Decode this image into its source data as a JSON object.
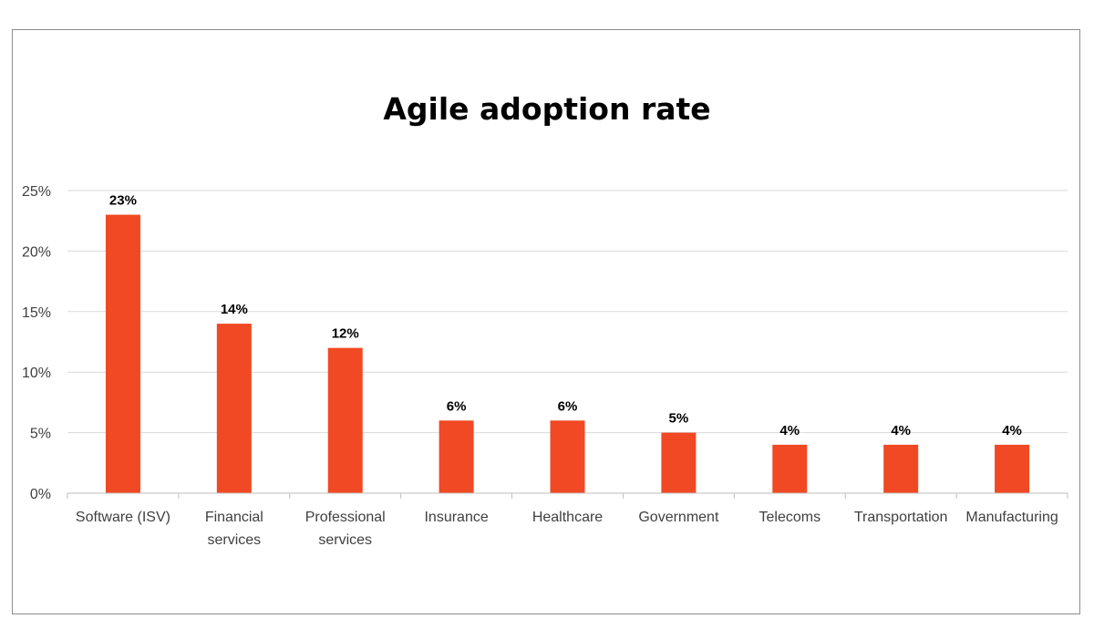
{
  "chart_data": {
    "type": "bar",
    "title": "Agile adoption rate",
    "categories": [
      [
        "Software (ISV)"
      ],
      [
        "Financial",
        "services"
      ],
      [
        "Professional",
        "services"
      ],
      [
        "Insurance"
      ],
      [
        "Healthcare"
      ],
      [
        "Government"
      ],
      [
        "Telecoms"
      ],
      [
        "Transportation"
      ],
      [
        "Manufacturing"
      ]
    ],
    "values": [
      23,
      14,
      12,
      6,
      6,
      5,
      4,
      4,
      4
    ],
    "value_labels": [
      "23%",
      "14%",
      "12%",
      "6%",
      "6%",
      "5%",
      "4%",
      "4%",
      "4%"
    ],
    "ylim": [
      0,
      25
    ],
    "yticks": [
      0,
      5,
      10,
      15,
      20,
      25
    ],
    "ytick_labels": [
      "0%",
      "5%",
      "10%",
      "15%",
      "20%",
      "25%"
    ],
    "xlabel": "",
    "ylabel": "",
    "grid": true,
    "legend": "none",
    "colors": {
      "bar": "#f04923",
      "grid": "#d9d9d9",
      "axis": "#bfbfbf"
    }
  }
}
